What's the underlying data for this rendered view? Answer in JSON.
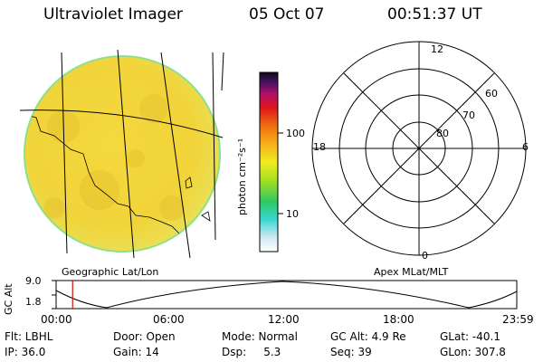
{
  "header": {
    "title": "Ultraviolet Imager",
    "date": "05 Oct 07",
    "time": "00:51:37 UT"
  },
  "colorbar": {
    "unit_label": "photon cm⁻²s⁻¹",
    "ticks": [
      "100",
      "10"
    ]
  },
  "polar": {
    "mlt_labels": [
      "12",
      "18",
      "6",
      "0"
    ],
    "lat_labels": [
      "60",
      "70",
      "80"
    ]
  },
  "map_caption": "Geographic Lat/Lon",
  "polar_caption": "Apex MLat/MLT",
  "timeline": {
    "ylabel": "GC Alt",
    "yticks": [
      "9.0",
      "1.8"
    ],
    "xticks": [
      "00:00",
      "06:00",
      "12:00",
      "18:00",
      "23:59"
    ],
    "marker_time_hours": 0.86
  },
  "footer": {
    "flt": "Flt: LBHL",
    "ip": "IP: 36.0",
    "door": "Door: Open",
    "gain": "Gain: 14",
    "mode": "Mode: Normal",
    "dsp": "Dsp:     5.3",
    "gc_alt": "GC Alt: 4.9 Re",
    "seq": "Seq: 39",
    "glat": "GLat: -40.1",
    "glon": "GLon: 307.8"
  },
  "colors": {
    "disk_fill": "#f2d63a",
    "disk_edge": "#8fe08a",
    "marker": "#d01010"
  }
}
